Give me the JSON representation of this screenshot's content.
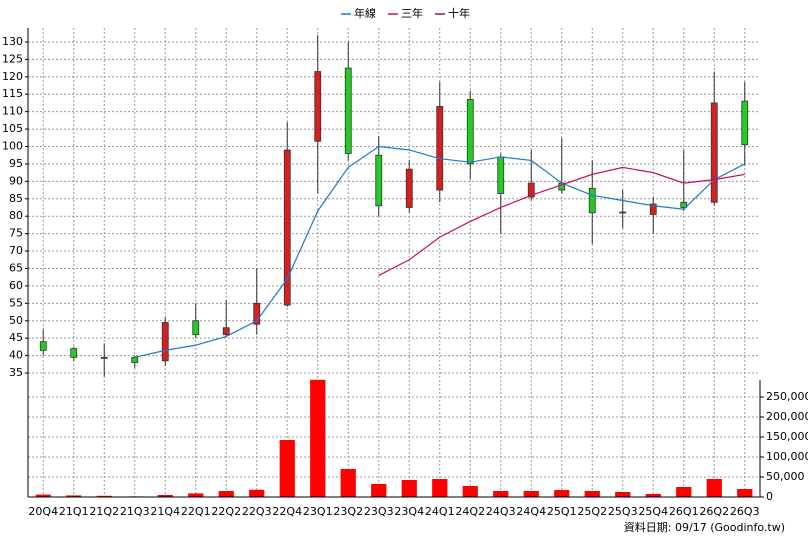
{
  "chart_data": {
    "type": "candlestick",
    "categories": [
      "20Q4",
      "21Q1",
      "21Q2",
      "21Q3",
      "21Q4",
      "22Q1",
      "22Q2",
      "22Q3",
      "22Q4",
      "23Q1",
      "23Q2",
      "23Q3",
      "23Q4",
      "24Q1",
      "24Q2",
      "24Q3",
      "24Q4",
      "25Q1",
      "25Q2",
      "25Q3",
      "25Q4",
      "26Q1",
      "26Q2",
      "26Q3"
    ],
    "open": [
      44,
      42,
      39.5,
      39.5,
      38.5,
      50,
      46,
      49,
      54.5,
      101.5,
      122.5,
      97.5,
      82.5,
      87.5,
      113.5,
      97,
      85.5,
      89.5,
      88,
      81.2,
      80.5,
      84,
      84,
      113
    ],
    "high": [
      47.5,
      42.5,
      43.5,
      40,
      51,
      55,
      56,
      65,
      107,
      132,
      130,
      103,
      96,
      118.5,
      116,
      98,
      99,
      102.5,
      96,
      87.5,
      85.5,
      99,
      121.5,
      118.5
    ],
    "low": [
      40,
      38.5,
      34,
      36.5,
      37,
      45,
      45.5,
      46,
      54,
      86.5,
      96,
      80,
      81,
      84,
      90.5,
      75,
      84.5,
      86.5,
      72,
      76.5,
      75,
      81.5,
      83,
      94.5
    ],
    "close": [
      41.5,
      39.5,
      39.3,
      38,
      49.5,
      46,
      48,
      55,
      99,
      121.5,
      98,
      83,
      93.5,
      111.5,
      95,
      86.5,
      89.5,
      87.5,
      81,
      81,
      83.5,
      82.5,
      112.5,
      100.5
    ],
    "up_color": "#d42020",
    "down_color": "#22cc22",
    "series": [
      {
        "name": "年線",
        "color": "#1f78d1",
        "values": [
          null,
          null,
          null,
          39.5,
          41.5,
          43,
          45.5,
          50,
          62,
          81.5,
          94,
          100,
          99,
          96.5,
          95.5,
          97,
          96,
          89.5,
          86,
          84.5,
          83,
          82,
          90.5,
          95
        ]
      },
      {
        "name": "三年",
        "color": "#c8105a",
        "values": [
          null,
          null,
          null,
          null,
          null,
          null,
          null,
          null,
          null,
          null,
          null,
          63,
          67.5,
          74,
          78.5,
          82.5,
          86,
          89,
          92,
          94,
          92.5,
          89.5,
          90.5,
          92
        ]
      },
      {
        "name": "十年",
        "color": "#8b1a6b",
        "values": [
          null,
          null,
          null,
          null,
          null,
          null,
          null,
          null,
          null,
          null,
          null,
          null,
          null,
          null,
          null,
          null,
          null,
          null,
          null,
          null,
          null,
          null,
          null,
          null
        ]
      }
    ],
    "ylim": [
      33,
      134
    ],
    "yticks": [
      35,
      40,
      45,
      50,
      55,
      60,
      65,
      70,
      75,
      80,
      85,
      90,
      95,
      100,
      105,
      110,
      115,
      120,
      125,
      130
    ],
    "grid": true,
    "volume": {
      "color": "#ff0000",
      "values": [
        6000,
        4000,
        3000,
        1500,
        5000,
        9000,
        15000,
        18000,
        142500,
        293000,
        70000,
        32500,
        42500,
        45000,
        27500,
        15000,
        15000,
        17500,
        15000,
        12500,
        7500,
        25000,
        45000,
        20000
      ],
      "ylim": [
        0,
        292500
      ],
      "yticks": [
        0,
        {
          "value": 50000,
          "label": "50,000"
        },
        {
          "value": 100000,
          "label": "100,000"
        },
        {
          "value": 150000,
          "label": "150,000"
        },
        {
          "value": 200000,
          "label": "200,000"
        },
        {
          "value": 250000,
          "label": "250,000"
        }
      ]
    },
    "footer": "資料日期: 09/17  (Goodinfo.tw)"
  }
}
